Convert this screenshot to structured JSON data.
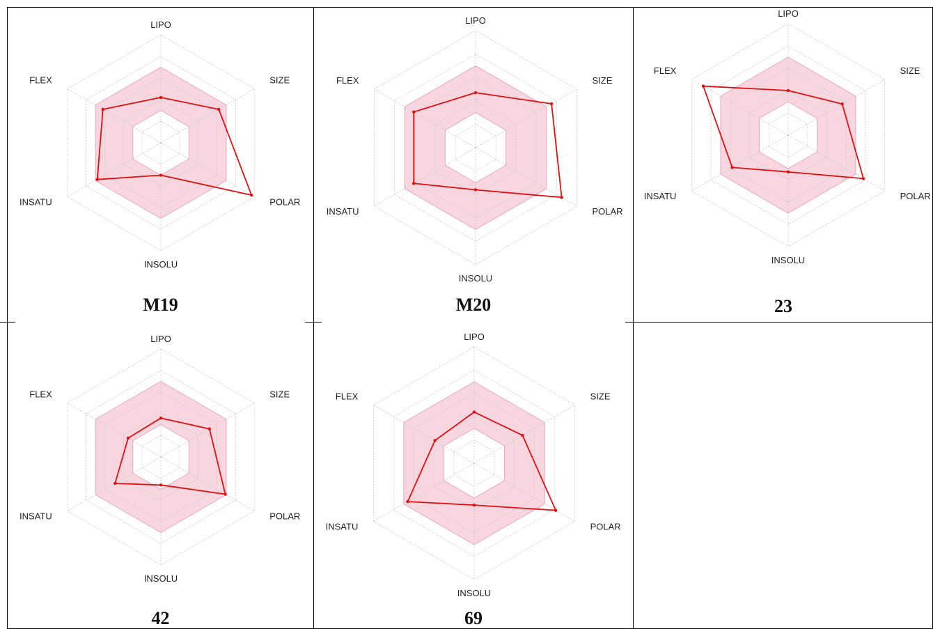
{
  "axes": [
    "LIPO",
    "SIZE",
    "POLAR",
    "INSOLU",
    "INSATU",
    "FLEX"
  ],
  "colors": {
    "profile_line": "#e01010",
    "optimal_zone_fill": "#f7d6e0",
    "optimal_zone_stroke": "#e6a9bc",
    "grid": "#c8c8c8",
    "cell_border": "#000000"
  },
  "chart_data": [
    {
      "type": "radar",
      "title": "M19",
      "axes": [
        "LIPO",
        "SIZE",
        "POLAR",
        "INSOLU",
        "INSATU",
        "FLEX"
      ],
      "values": [
        0.42,
        0.62,
        0.97,
        0.3,
        0.68,
        0.62
      ],
      "optimal_range": [
        0.3,
        0.7
      ],
      "rings": 5,
      "grid": true
    },
    {
      "type": "radar",
      "title": "M20",
      "axes": [
        "LIPO",
        "SIZE",
        "POLAR",
        "INSOLU",
        "INSATU",
        "FLEX"
      ],
      "values": [
        0.47,
        0.75,
        0.85,
        0.36,
        0.61,
        0.61
      ],
      "optimal_range": [
        0.3,
        0.7
      ],
      "rings": 5,
      "grid": true
    },
    {
      "type": "radar",
      "title": "23",
      "axes": [
        "LIPO",
        "SIZE",
        "POLAR",
        "INSOLU",
        "INSATU",
        "FLEX"
      ],
      "values": [
        0.4,
        0.56,
        0.78,
        0.33,
        0.58,
        0.88
      ],
      "optimal_range": [
        0.3,
        0.7
      ],
      "rings": 5,
      "grid": true
    },
    {
      "type": "radar",
      "title": "42",
      "axes": [
        "LIPO",
        "SIZE",
        "POLAR",
        "INSOLU",
        "INSATU",
        "FLEX"
      ],
      "values": [
        0.36,
        0.52,
        0.69,
        0.26,
        0.49,
        0.35
      ],
      "optimal_range": [
        0.3,
        0.7
      ],
      "rings": 5,
      "grid": true
    },
    {
      "type": "radar",
      "title": "69",
      "axes": [
        "LIPO",
        "SIZE",
        "POLAR",
        "INSOLU",
        "INSATU",
        "FLEX"
      ],
      "values": [
        0.44,
        0.48,
        0.81,
        0.36,
        0.66,
        0.39
      ],
      "optimal_range": [
        0.3,
        0.7
      ],
      "rings": 5,
      "grid": true
    }
  ]
}
